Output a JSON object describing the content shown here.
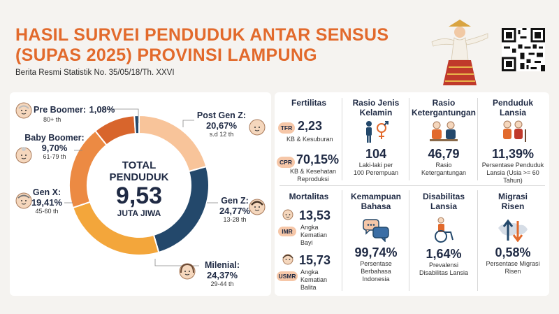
{
  "header": {
    "title_line1": "HASIL SURVEI PENDUDUK ANTAR SENSUS",
    "title_line2": "(SUPAS 2025) PROVINSI LAMPUNG",
    "subtitle": "Berita Resmi Statistik No. 35/05/18/Th. XXVI"
  },
  "colors": {
    "accent": "#e26a2c",
    "navy": "#23486b",
    "peach": "#f8c49a",
    "orange": "#ec8a43",
    "amber": "#f3a63b",
    "dark_orange": "#d8652c"
  },
  "population": {
    "total_label_1": "TOTAL",
    "total_label_2": "PENDUDUK",
    "total_value": "9,53",
    "total_unit": "JUTA JIWA"
  },
  "generations": [
    {
      "label": "Pre Boomer:",
      "pct": "1,08%",
      "range": "80+ th"
    },
    {
      "label": "Baby Boomer:",
      "pct": "9,70%",
      "range": "61-79 th"
    },
    {
      "label": "Gen X:",
      "pct": "19,41%",
      "range": "45-60 th"
    },
    {
      "label": "Milenial:",
      "pct": "24,37%",
      "range": "29-44 th"
    },
    {
      "label": "Gen Z:",
      "pct": "24,77%",
      "range": "13-28 th"
    },
    {
      "label": "Post Gen Z:",
      "pct": "20,67%",
      "range": "s.d 12 th"
    }
  ],
  "chart_data": {
    "type": "pie",
    "categories": [
      "Post Gen Z",
      "Gen Z",
      "Milenial",
      "Gen X",
      "Baby Boomer",
      "Pre Boomer"
    ],
    "values": [
      20.67,
      24.77,
      24.37,
      19.41,
      9.7,
      1.08
    ],
    "colors": [
      "#f8c49a",
      "#23486b",
      "#f3a63b",
      "#ec8a43",
      "#d8652c",
      "#23486b"
    ]
  },
  "stats": {
    "fertilitas": {
      "title": "Fertilitas",
      "tfr_badge": "TFR",
      "tfr_value": "2,23",
      "tfr_desc": "KB & Kesuburan",
      "cpr_badge": "CPR",
      "cpr_value": "70,15%",
      "cpr_desc_1": "KB & Kesehatan",
      "cpr_desc_2": "Reproduksi"
    },
    "rasio_jk": {
      "title_1": "Rasio Jenis",
      "title_2": "Kelamin",
      "value": "104",
      "desc_1": "Laki-laki per",
      "desc_2": "100 Perempuan"
    },
    "rasio_kt": {
      "title_1": "Rasio",
      "title_2": "Ketergantungan",
      "value": "46,79",
      "desc_1": "Rasio",
      "desc_2": "Ketergantungan"
    },
    "lansia": {
      "title_1": "Penduduk",
      "title_2": "Lansia",
      "value": "11,39%",
      "desc_1": "Persentase Penduduk",
      "desc_2": "Lansia (Usia >= 60",
      "desc_3": "Tahun)"
    },
    "mortalitas": {
      "title": "Mortalitas",
      "imr_badge": "IMR",
      "imr_value": "13,53",
      "imr_desc_1": "Angka",
      "imr_desc_2": "Kematian",
      "imr_desc_3": "Bayi",
      "usmr_badge": "USMR",
      "usmr_value": "15,73",
      "usmr_desc_1": "Angka",
      "usmr_desc_2": "Kematian",
      "usmr_desc_3": "Balita"
    },
    "bahasa": {
      "title_1": "Kemampuan",
      "title_2": "Bahasa",
      "value": "99,74%",
      "desc_1": "Persentase",
      "desc_2": "Berbahasa",
      "desc_3": "Indonesia"
    },
    "disabilitas": {
      "title_1": "Disabilitas",
      "title_2": "Lansia",
      "value": "1,64%",
      "desc_1": "Prevalensi",
      "desc_2": "Disabilitas Lansia"
    },
    "migrasi": {
      "title_1": "Migrasi",
      "title_2": "Risen",
      "value": "0,58%",
      "desc_1": "Persentase Migrasi",
      "desc_2": "Risen"
    }
  }
}
